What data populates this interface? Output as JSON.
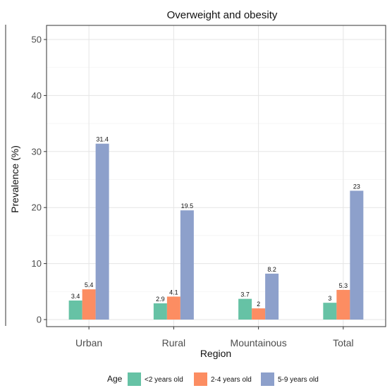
{
  "chart_data": {
    "type": "bar",
    "title": "Overweight and obesity",
    "xlabel": "Region",
    "ylabel": "Prevalence (%)",
    "categories": [
      "Urban",
      "Rural",
      "Mountainous",
      "Total"
    ],
    "ylim": [
      0,
      50
    ],
    "yticks": [
      0,
      10,
      20,
      30,
      40,
      50
    ],
    "grid": true,
    "legend_position": "bottom",
    "legend_title": "Age",
    "series": [
      {
        "name": "<2 years old",
        "color": "#66c2a5",
        "values": [
          3.4,
          2.9,
          3.7,
          3
        ]
      },
      {
        "name": "2-4 years old",
        "color": "#fc8d62",
        "values": [
          5.4,
          4.1,
          2,
          5.3
        ]
      },
      {
        "name": "5-9 years old",
        "color": "#8da0cb",
        "values": [
          31.4,
          19.5,
          8.2,
          23
        ]
      }
    ]
  }
}
